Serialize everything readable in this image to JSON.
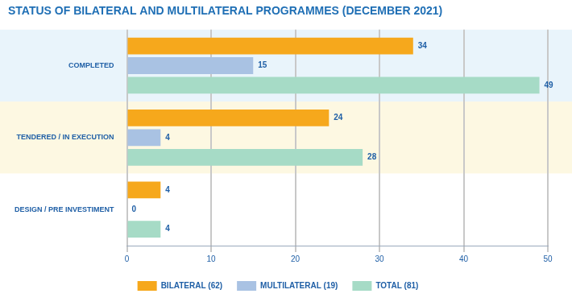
{
  "chart_data": {
    "type": "bar",
    "orientation": "horizontal",
    "title": "STATUS OF BILATERAL AND MULTILATERAL PROGRAMMES (DECEMBER 2021)",
    "categories": [
      "COMPLETED",
      "TENDERED / IN EXECUTION",
      "DESIGN / PRE INVESTIMENT"
    ],
    "series": [
      {
        "name": "BILATERAL (62)",
        "color": "#f6a81c",
        "values": [
          34,
          24,
          4
        ]
      },
      {
        "name": "MULTILATERAL (19)",
        "color": "#a9c2e3",
        "values": [
          15,
          4,
          0
        ]
      },
      {
        "name": "TOTAL (81)",
        "color": "#a6dbc6",
        "values": [
          49,
          28,
          4
        ]
      }
    ],
    "xlim": [
      0,
      50
    ],
    "xticks": [
      0,
      10,
      20,
      30,
      40,
      50
    ],
    "grid": true,
    "legend": "bottom",
    "data_labels": true
  }
}
